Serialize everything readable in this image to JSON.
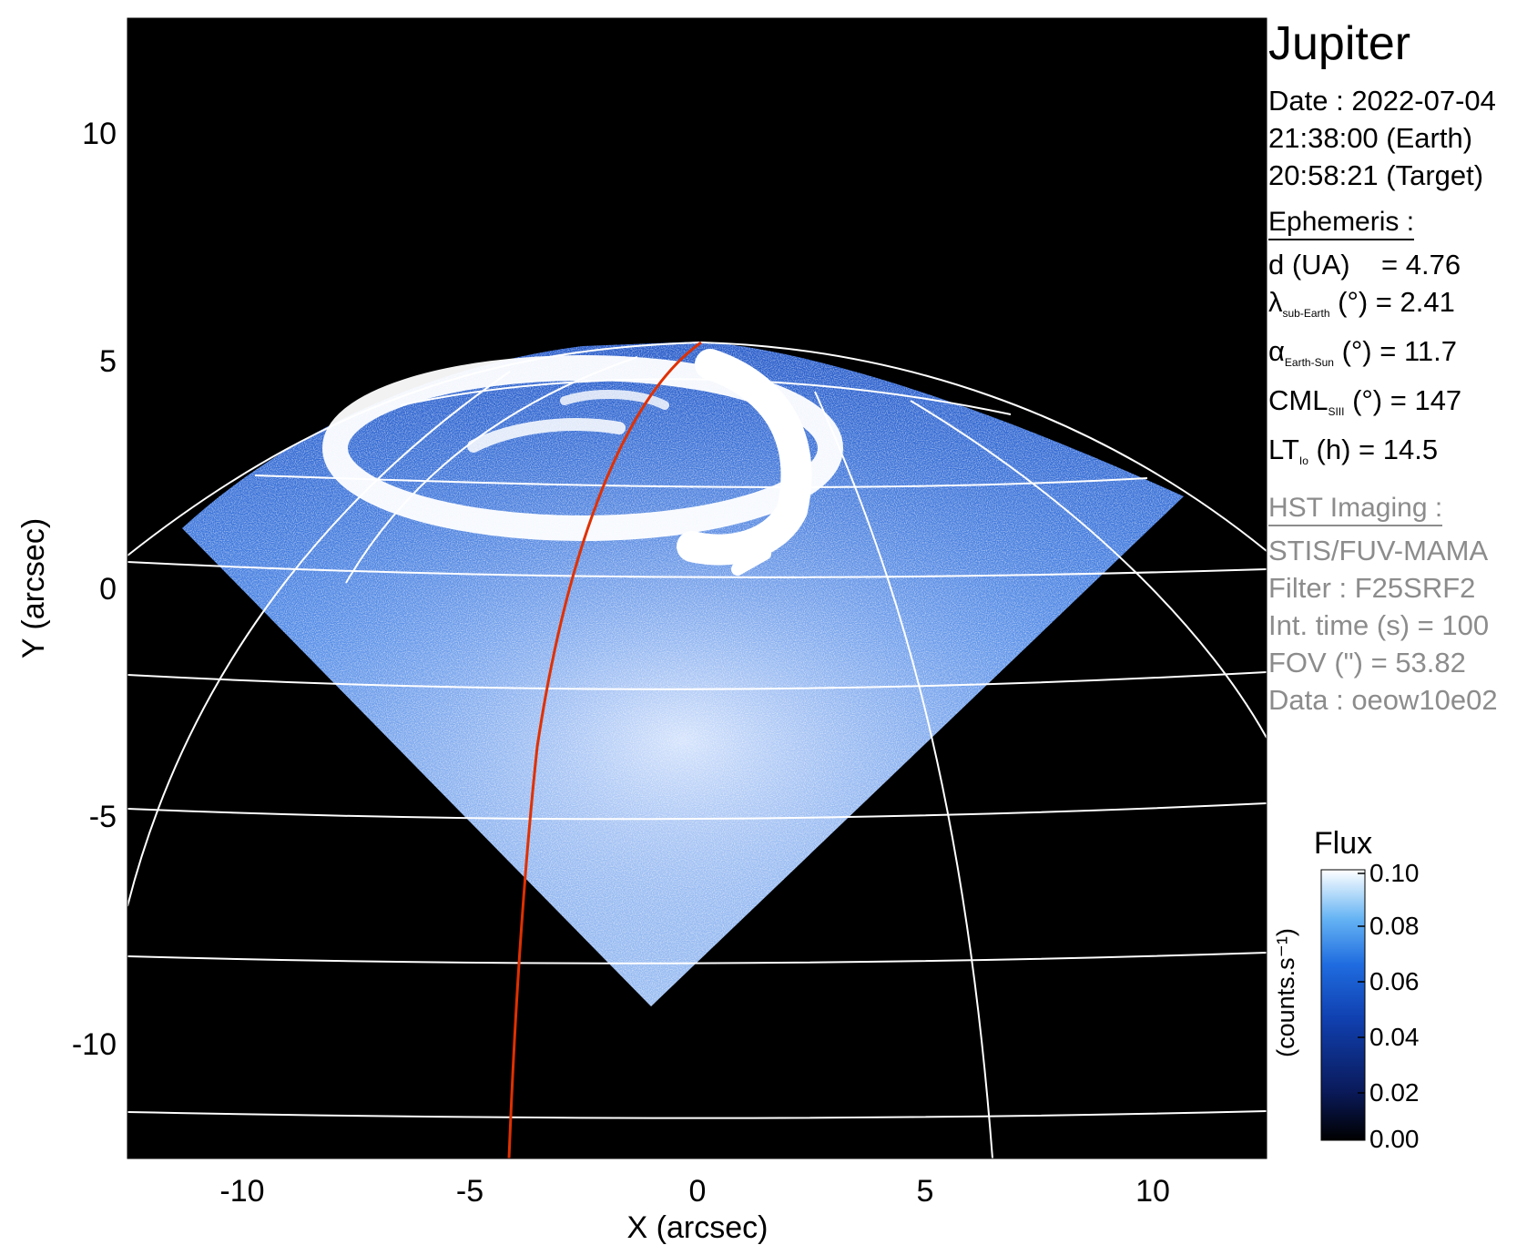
{
  "title": "Jupiter",
  "date": {
    "line1": "Date : 2022-07-04",
    "line2": "21:38:00 (Earth)",
    "line3": "20:58:21 (Target)"
  },
  "ephemeris": {
    "heading": "Ephemeris :",
    "d": "d (UA)    = 4.76",
    "lambda": {
      "symbol": "λ",
      "sub": "sub-Earth",
      "rest": " (°) = 2.41"
    },
    "alpha": {
      "symbol": "α",
      "sub": "Earth-Sun",
      "rest": " (°) = 11.7"
    },
    "cml": {
      "symbol": "CML",
      "sub": "SIII",
      "rest": " (°) = 147"
    },
    "lt": {
      "symbol": "LT",
      "sub": "Io",
      "rest": " (h) = 14.5"
    }
  },
  "hst": {
    "heading": "HST Imaging :",
    "instrument": "STIS/FUV-MAMA",
    "filter": "Filter : F25SRF2",
    "int_time": "Int. time (s) = 100",
    "fov": "FOV (\") = 53.82",
    "data": "Data : oeow10e02"
  },
  "colorbar": {
    "title": "Flux",
    "label": "(counts.s⁻¹)",
    "ticks": [
      "0.10",
      "0.08",
      "0.06",
      "0.04",
      "0.02",
      "0.00"
    ],
    "range": [
      0.0,
      0.1
    ],
    "colors": [
      "#000000",
      "#0a1a5a",
      "#1040b0",
      "#1f6ce0",
      "#66b4f4",
      "#ffffff"
    ]
  },
  "axes": {
    "xlabel": "X (arcsec)",
    "ylabel": "Y (arcsec)",
    "xlim": [
      -12.5,
      12.5
    ],
    "ylim": [
      -12.5,
      12.5
    ],
    "xticks": [
      "-10",
      "-5",
      "0",
      "5",
      "10"
    ],
    "yticks": [
      "10",
      "5",
      "0",
      "-5",
      "-10"
    ]
  },
  "colors": {
    "background": "#000000",
    "grid": "#ffffff",
    "meridian": "#e03000",
    "auroral_oval": "#ffffff",
    "emission": "#2a66d8"
  }
}
